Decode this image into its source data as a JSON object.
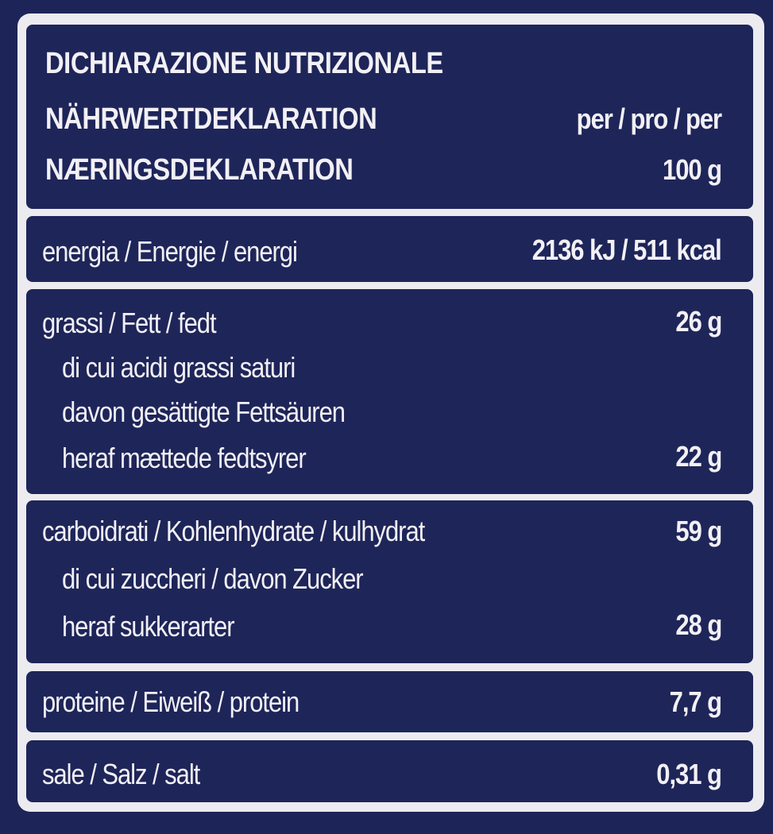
{
  "header": {
    "title_it": "DICHIARAZIONE NUTRIZIONALE",
    "title_de": "NÄHRWERTDEKLARATION",
    "title_da": "NÆRINGSDEKLARATION",
    "per_label": "per / pro / per",
    "per_amount": "100 g"
  },
  "rows": {
    "energy": {
      "label": "energia / Energie / energi",
      "value": "2136 kJ / 511 kcal"
    },
    "fat": {
      "label": "grassi / Fett / fedt",
      "value": "26 g",
      "sub_it": "di cui acidi grassi saturi",
      "sub_de": "davon gesättigte Fettsäuren",
      "sub_da": "heraf mættede fedtsyrer",
      "sub_value": "22 g"
    },
    "carbs": {
      "label": "carboidrati / Kohlenhydrate / kulhydrat",
      "value": "59 g",
      "sub_itde": "di cui zuccheri / davon Zucker",
      "sub_da": "heraf  sukkerarter",
      "sub_value": "28 g"
    },
    "protein": {
      "label": "proteine / Eiweiß / protein",
      "value": "7,7 g"
    },
    "salt": {
      "label": "sale / Salz / salt",
      "value": "0,31 g"
    }
  },
  "colors": {
    "background": "#1d2457",
    "frame": "#ecebf0",
    "text": "#f2f0f4"
  }
}
